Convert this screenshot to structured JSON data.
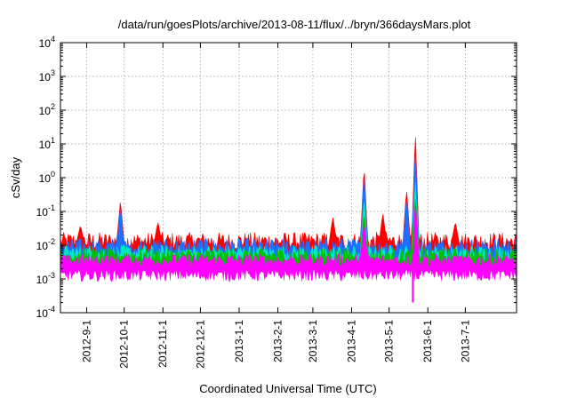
{
  "chart_data": {
    "type": "area",
    "title": "/data/run/goesPlots/archive/2013-08-11/flux/../bryn/366daysMars.plot",
    "xlabel": "Coordinated Universal Time (UTC)",
    "ylabel": "cSv/day",
    "y_scale": "log",
    "ylim": [
      0.0001,
      10000
    ],
    "xlim": [
      "2012-08-11",
      "2013-08-11"
    ],
    "grid": true,
    "legend": "none",
    "y_ticks": [
      {
        "base": "10",
        "exp": "-4",
        "value": 0.0001
      },
      {
        "base": "10",
        "exp": "-3",
        "value": 0.001
      },
      {
        "base": "10",
        "exp": "-2",
        "value": 0.01
      },
      {
        "base": "10",
        "exp": "-1",
        "value": 0.1
      },
      {
        "base": "10",
        "exp": "0",
        "value": 1
      },
      {
        "base": "10",
        "exp": "1",
        "value": 10
      },
      {
        "base": "10",
        "exp": "2",
        "value": 100
      },
      {
        "base": "10",
        "exp": "3",
        "value": 1000
      },
      {
        "base": "10",
        "exp": "4",
        "value": 10000
      }
    ],
    "x_ticks": [
      {
        "label": "2012-9-1",
        "date": "2012-09-01"
      },
      {
        "label": "2012-10-1",
        "date": "2012-10-01"
      },
      {
        "label": "2012-11-1",
        "date": "2012-11-01"
      },
      {
        "label": "2012-12-1",
        "date": "2012-12-01"
      },
      {
        "label": "2013-1-1",
        "date": "2013-01-01"
      },
      {
        "label": "2013-2-1",
        "date": "2013-02-01"
      },
      {
        "label": "2013-3-1",
        "date": "2013-03-01"
      },
      {
        "label": "2013-4-1",
        "date": "2013-04-01"
      },
      {
        "label": "2013-5-1",
        "date": "2013-05-01"
      },
      {
        "label": "2013-6-1",
        "date": "2013-06-01"
      },
      {
        "label": "2013-7-1",
        "date": "2013-07-01"
      }
    ],
    "series": [
      {
        "color": "#ff0000",
        "baseline": 0.013,
        "peaks": [
          {
            "date": "2012-08-27",
            "value": 0.04
          },
          {
            "date": "2012-09-28",
            "value": 0.22
          },
          {
            "date": "2012-10-28",
            "value": 0.05
          },
          {
            "date": "2013-03-17",
            "value": 0.07
          },
          {
            "date": "2013-04-11",
            "value": 2.5
          },
          {
            "date": "2013-04-26",
            "value": 0.09
          },
          {
            "date": "2013-05-15",
            "value": 0.5
          },
          {
            "date": "2013-05-22",
            "value": 25
          },
          {
            "date": "2013-06-23",
            "value": 0.05
          }
        ]
      },
      {
        "color": "#1f6fff",
        "baseline": 0.009,
        "peaks": [
          {
            "date": "2012-09-28",
            "value": 0.15
          },
          {
            "date": "2013-04-11",
            "value": 1.5
          },
          {
            "date": "2013-05-15",
            "value": 0.3
          },
          {
            "date": "2013-05-22",
            "value": 8
          }
        ]
      },
      {
        "color": "#00e6c8",
        "baseline": 0.006,
        "peaks": [
          {
            "date": "2013-04-11",
            "value": 0.3
          },
          {
            "date": "2013-05-22",
            "value": 1
          }
        ]
      },
      {
        "color": "#00c000",
        "baseline": 0.005,
        "peaks": [
          {
            "date": "2013-04-11",
            "value": 0.1
          },
          {
            "date": "2013-05-22",
            "value": 0.3
          }
        ]
      },
      {
        "color": "#ff00ff",
        "baseline": 0.0035,
        "peaks": [
          {
            "date": "2013-04-11",
            "value": 0.05
          },
          {
            "date": "2013-05-22",
            "value": 0.2
          }
        ],
        "dips": [
          {
            "date": "2013-05-20",
            "value": 0.0002
          }
        ]
      }
    ]
  }
}
